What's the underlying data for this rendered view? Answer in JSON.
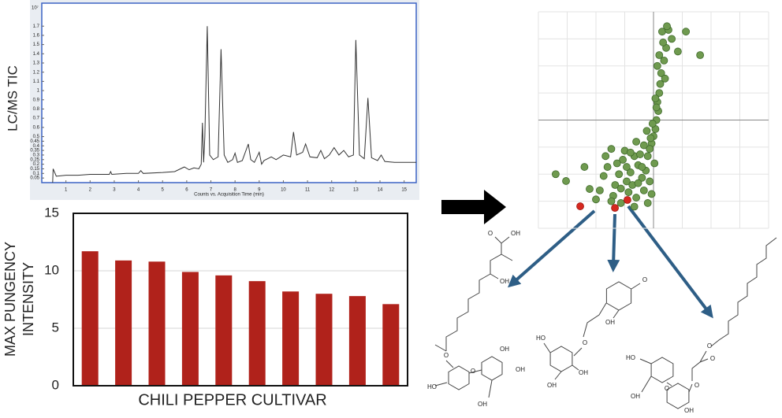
{
  "chart_data": [
    {
      "type": "line",
      "ylabel": "LC/MS TIC",
      "xlabel": "Counts vs. Acquisition Time (min)",
      "y_unit": "10⁷",
      "color": "#333333",
      "x": [
        0.45,
        0.47,
        0.6,
        1,
        1.5,
        2,
        2.5,
        2.8,
        2.85,
        2.9,
        3.5,
        4,
        4.1,
        4.2,
        5,
        5.5,
        5.9,
        6.1,
        6.3,
        6.5,
        6.6,
        6.65,
        6.7,
        6.75,
        6.85,
        6.95,
        7.1,
        7.3,
        7.42,
        7.55,
        7.7,
        7.9,
        8.0,
        8.1,
        8.3,
        8.55,
        8.65,
        8.8,
        9.0,
        9.1,
        9.2,
        9.5,
        9.7,
        10.0,
        10.3,
        10.42,
        10.55,
        10.8,
        10.92,
        11.1,
        11.4,
        11.55,
        11.7,
        11.9,
        12.1,
        12.3,
        12.5,
        12.7,
        12.9,
        13.0,
        13.15,
        13.35,
        13.5,
        13.65,
        13.9,
        14.05,
        14.2,
        14.6,
        15.0,
        15.5
      ],
      "values": [
        0.0,
        0.15,
        0.07,
        0.08,
        0.08,
        0.09,
        0.09,
        0.09,
        0.12,
        0.09,
        0.1,
        0.1,
        0.13,
        0.1,
        0.11,
        0.12,
        0.17,
        0.14,
        0.16,
        0.15,
        0.2,
        0.65,
        0.22,
        0.5,
        1.7,
        0.3,
        0.25,
        0.28,
        1.45,
        0.3,
        0.22,
        0.25,
        0.32,
        0.22,
        0.24,
        0.42,
        0.25,
        0.22,
        0.33,
        0.2,
        0.24,
        0.28,
        0.25,
        0.3,
        0.28,
        0.55,
        0.3,
        0.33,
        0.42,
        0.28,
        0.27,
        0.35,
        0.26,
        0.3,
        0.38,
        0.3,
        0.35,
        0.28,
        0.3,
        1.55,
        0.3,
        0.26,
        0.92,
        0.27,
        0.24,
        0.3,
        0.23,
        0.22,
        0.22,
        0.22
      ],
      "xlim": [
        0,
        15.5
      ],
      "xticks": [
        1,
        2,
        3,
        4,
        5,
        6,
        7,
        8,
        9,
        10,
        11,
        12,
        13,
        14,
        15
      ],
      "ylim": [
        0,
        1.95
      ],
      "yticks": [
        0.05,
        0.1,
        0.15,
        0.2,
        0.25,
        0.3,
        0.35,
        0.4,
        0.45,
        0.5,
        0.6,
        0.7,
        0.8,
        0.9,
        1,
        1.1,
        1.2,
        1.3,
        1.4,
        1.5,
        1.6,
        1.7
      ]
    },
    {
      "type": "bar",
      "ylabel": [
        "MAX PUNGENCY",
        "INTENSITY"
      ],
      "xlabel": "CHILI PEPPER CULTIVAR",
      "color": "#b0221b",
      "categories": [
        null,
        null,
        null,
        null,
        null,
        null,
        null,
        null,
        null,
        null
      ],
      "values": [
        11.7,
        10.9,
        10.8,
        9.9,
        9.6,
        9.1,
        8.2,
        8.0,
        7.8,
        7.1
      ],
      "ylim": [
        0,
        15
      ],
      "yticks": [
        0,
        5,
        10,
        15
      ],
      "grid": true
    },
    {
      "type": "scatter",
      "grid": true,
      "reference_lines": {
        "x": 0,
        "y": 0
      },
      "xlim": [
        -6,
        6
      ],
      "ylim": [
        -6,
        6
      ],
      "xticks": [
        -6,
        -4.5,
        -3,
        -1.5,
        0,
        1.5,
        3,
        4.5,
        6
      ],
      "yticks": [
        -6,
        -4.5,
        -3,
        -1.5,
        0,
        1.5,
        3,
        4.5,
        6
      ],
      "series": [
        {
          "color": "#6f9a4f",
          "x": [
            0.45,
            0.78,
            0.66,
            0.95,
            1.69,
            2.43,
            1.27,
            0.55,
            0.4,
            0.35,
            0.3,
            0.2,
            0.25,
            0.15,
            0.1,
            0.0,
            -0.1,
            -0.2,
            -0.3,
            0.05,
            -0.4,
            -0.6,
            -0.8,
            -1.0,
            -1.2,
            -1.4,
            -1.6,
            -1.8,
            -2.0,
            -2.2,
            -2.4,
            -2.6,
            -0.5,
            -0.9,
            -1.3,
            -1.7,
            -2.1,
            -0.3,
            -0.7,
            -1.1,
            -1.5,
            -1.9,
            -0.2,
            -0.6,
            -1.0,
            -1.4,
            -0.1,
            -0.5,
            -0.8,
            -1.2,
            -2.2,
            -2.8,
            -3.33,
            -4.56,
            -5.1,
            -3.6,
            -3.0,
            -2.5,
            0.2,
            0.1,
            -0.05,
            0.3,
            0.5,
            0.6,
            0.15,
            -0.15,
            -0.35,
            0.7,
            -0.9,
            -1.7
          ],
          "y": [
            4.9,
            5.0,
            4.0,
            4.5,
            4.9,
            3.6,
            3.8,
            3.3,
            2.6,
            2.0,
            1.5,
            1.0,
            0.5,
            0.0,
            -0.5,
            -0.9,
            -1.3,
            -1.6,
            -2.0,
            -2.4,
            -2.8,
            -3.2,
            -2.5,
            -2.0,
            -2.9,
            -3.4,
            -2.2,
            -3.0,
            -3.6,
            -1.6,
            -2.6,
            -3.1,
            -3.9,
            -4.3,
            -4.0,
            -3.8,
            -4.2,
            -4.6,
            -1.9,
            -3.6,
            -1.7,
            -2.4,
            -3.4,
            -2.6,
            -4.8,
            -2.6,
            -4.1,
            -1.4,
            -3.5,
            -1.8,
            -4.5,
            -3.9,
            -3.82,
            -3.38,
            -3.0,
            -2.6,
            -4.4,
            -2.0,
            3.0,
            1.2,
            -0.2,
            3.6,
            4.3,
            2.3,
            0.7,
            -1.0,
            -0.6,
            5.2,
            -1.2,
            -4.6
          ]
        },
        {
          "color": "#d6281f",
          "x": [
            -3.82,
            -2.01,
            -1.36
          ],
          "y": [
            -4.78,
            -4.87,
            -4.43
          ]
        }
      ]
    }
  ],
  "structures": [
    {
      "labels": [
        "O",
        "OH",
        "OH",
        "O",
        "O",
        "HO",
        "OH",
        "OH",
        "OH"
      ]
    },
    {
      "labels": [
        "O",
        "OH",
        "O",
        "HO",
        "OH",
        "OH"
      ]
    },
    {
      "labels": [
        "O",
        "O",
        "O",
        "HO",
        "OH",
        "O",
        "OH"
      ]
    }
  ]
}
